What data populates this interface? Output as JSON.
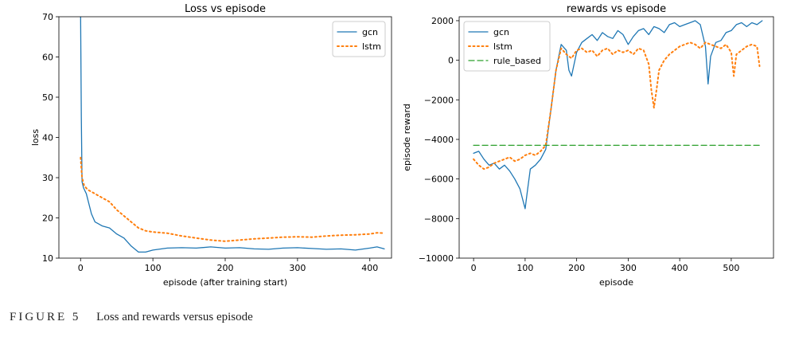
{
  "chart_data": [
    {
      "type": "line",
      "title": "Loss vs episode",
      "xlabel": "episode (after training start)",
      "ylabel": "loss",
      "xlim": [
        -30,
        430
      ],
      "ylim": [
        10,
        70
      ],
      "xticks": [
        0,
        100,
        200,
        300,
        400
      ],
      "yticks": [
        10,
        20,
        30,
        40,
        50,
        60,
        70
      ],
      "legend_position": "upper-right",
      "series": [
        {
          "name": "gcn",
          "style": "solid",
          "color": "#1f77b4",
          "x": [
            0,
            1,
            2,
            4,
            8,
            15,
            20,
            25,
            30,
            40,
            50,
            60,
            70,
            80,
            90,
            100,
            120,
            140,
            160,
            180,
            200,
            220,
            240,
            260,
            280,
            300,
            320,
            340,
            360,
            380,
            400,
            410,
            420
          ],
          "values": [
            70,
            45,
            29,
            27.5,
            26,
            21,
            19,
            18.5,
            18,
            17.5,
            16,
            15,
            13,
            11.5,
            11.5,
            12,
            12.5,
            12.6,
            12.5,
            12.8,
            12.5,
            12.6,
            12.3,
            12.2,
            12.5,
            12.6,
            12.4,
            12.2,
            12.3,
            12.0,
            12.5,
            12.8,
            12.3
          ]
        },
        {
          "name": "lstm",
          "style": "dotted",
          "color": "#ff7f0e",
          "x": [
            0,
            2,
            5,
            10,
            20,
            30,
            40,
            50,
            60,
            70,
            80,
            90,
            100,
            120,
            140,
            160,
            180,
            200,
            220,
            240,
            260,
            280,
            300,
            320,
            340,
            360,
            380,
            400,
            410,
            420
          ],
          "values": [
            35,
            30,
            28,
            27,
            26,
            25,
            24,
            22,
            20.5,
            19,
            17.5,
            16.8,
            16.5,
            16.2,
            15.5,
            15,
            14.5,
            14.2,
            14.5,
            14.8,
            15,
            15.2,
            15.3,
            15.2,
            15.5,
            15.7,
            15.8,
            16,
            16.3,
            16.2
          ]
        }
      ]
    },
    {
      "type": "line",
      "title": "rewards vs episode",
      "xlabel": "episode",
      "ylabel": "episode reward",
      "xlim": [
        -28,
        582
      ],
      "ylim": [
        -10000,
        2200
      ],
      "xticks": [
        0,
        100,
        200,
        300,
        400,
        500
      ],
      "yticks": [
        -10000,
        -8000,
        -6000,
        -4000,
        -2000,
        0,
        2000
      ],
      "legend_position": "upper-left",
      "series": [
        {
          "name": "gcn",
          "style": "solid",
          "color": "#1f77b4",
          "x": [
            0,
            10,
            20,
            30,
            40,
            50,
            60,
            70,
            80,
            90,
            95,
            100,
            105,
            110,
            120,
            130,
            140,
            150,
            160,
            170,
            180,
            185,
            190,
            200,
            210,
            220,
            230,
            240,
            250,
            260,
            270,
            280,
            290,
            300,
            310,
            320,
            330,
            340,
            350,
            360,
            370,
            380,
            390,
            400,
            410,
            420,
            430,
            440,
            450,
            455,
            460,
            470,
            480,
            490,
            500,
            510,
            520,
            530,
            540,
            550,
            560
          ],
          "values": [
            -4700,
            -4600,
            -5000,
            -5300,
            -5200,
            -5500,
            -5300,
            -5600,
            -6000,
            -6500,
            -7000,
            -7500,
            -6500,
            -5500,
            -5300,
            -5000,
            -4500,
            -2500,
            -500,
            800,
            500,
            -500,
            -800,
            400,
            900,
            1100,
            1300,
            1000,
            1400,
            1200,
            1100,
            1500,
            1300,
            800,
            1200,
            1500,
            1600,
            1300,
            1700,
            1600,
            1400,
            1800,
            1900,
            1700,
            1800,
            1900,
            2000,
            1800,
            700,
            -1200,
            200,
            900,
            1000,
            1400,
            1500,
            1800,
            1900,
            1700,
            1900,
            1800,
            2000
          ]
        },
        {
          "name": "lstm",
          "style": "dotted",
          "color": "#ff7f0e",
          "x": [
            0,
            10,
            20,
            30,
            40,
            50,
            60,
            70,
            80,
            90,
            100,
            110,
            120,
            130,
            140,
            150,
            160,
            170,
            180,
            190,
            200,
            210,
            220,
            230,
            240,
            250,
            260,
            270,
            280,
            290,
            300,
            310,
            320,
            330,
            340,
            345,
            350,
            355,
            360,
            370,
            380,
            390,
            400,
            410,
            420,
            430,
            440,
            450,
            460,
            470,
            480,
            490,
            500,
            505,
            510,
            520,
            530,
            540,
            550,
            555
          ],
          "values": [
            -5000,
            -5300,
            -5500,
            -5400,
            -5200,
            -5100,
            -5000,
            -4900,
            -5100,
            -5000,
            -4800,
            -4700,
            -4800,
            -4600,
            -4300,
            -2500,
            -500,
            600,
            300,
            100,
            500,
            600,
            400,
            500,
            200,
            500,
            600,
            300,
            500,
            400,
            500,
            300,
            600,
            500,
            -200,
            -1500,
            -2400,
            -1500,
            -500,
            0,
            300,
            500,
            700,
            800,
            900,
            800,
            600,
            900,
            800,
            700,
            600,
            800,
            400,
            -800,
            300,
            500,
            700,
            800,
            700,
            -300
          ]
        },
        {
          "name": "rule_based",
          "style": "dashed",
          "color": "#2ca02c",
          "x": [
            0,
            560
          ],
          "values": [
            -4300,
            -4300
          ]
        }
      ]
    }
  ],
  "caption": {
    "label": "FIGURE 5",
    "text": "Loss and rewards versus episode"
  }
}
